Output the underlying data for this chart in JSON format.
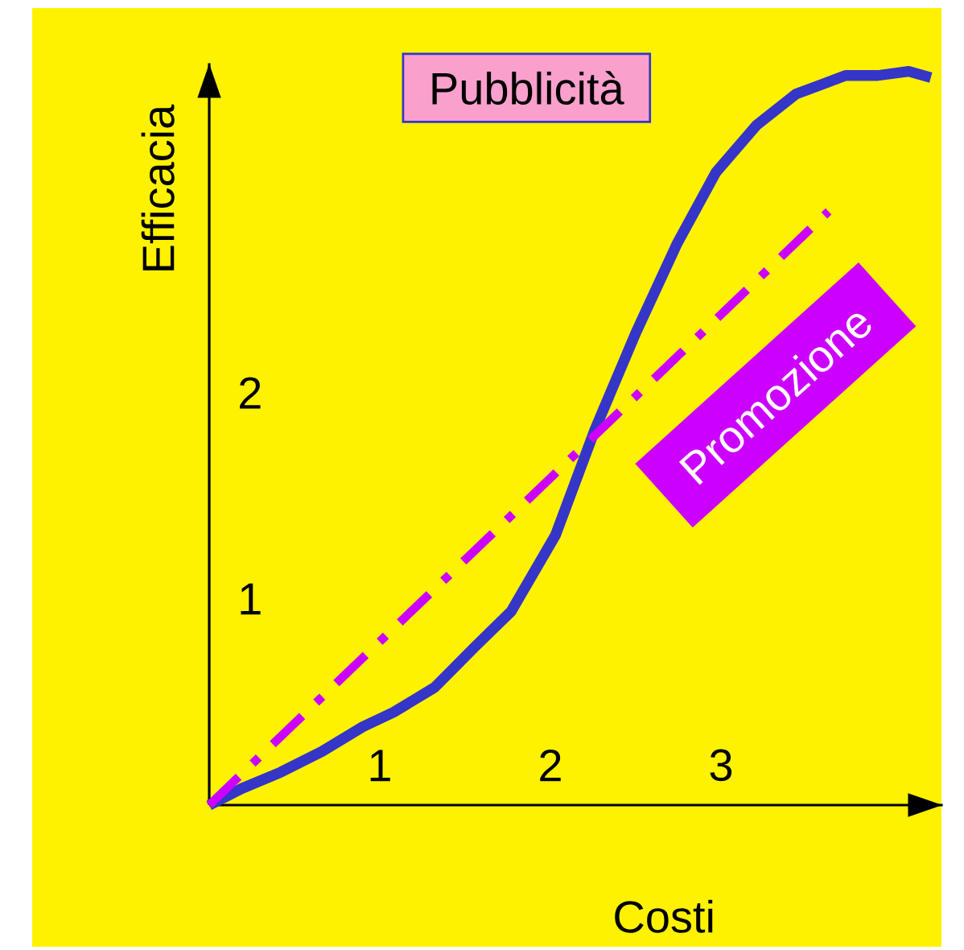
{
  "chart_data": {
    "type": "line",
    "xlabel": "Costi",
    "ylabel": "Efficacia",
    "xlim": [
      0,
      4.3
    ],
    "ylim": [
      0,
      3.6
    ],
    "xticks": [
      1,
      2,
      3
    ],
    "yticks": [
      1,
      2
    ],
    "series": [
      {
        "name": "Pubblicità",
        "color": "#3535c8",
        "line_style": "solid",
        "x": [
          0,
          0.19,
          0.42,
          0.66,
          0.9,
          1.08,
          1.32,
          1.56,
          1.77,
          2.03,
          2.26,
          2.5,
          2.74,
          2.97,
          3.21,
          3.44,
          3.73,
          3.92,
          4.1,
          4.23
        ],
        "values": [
          0,
          0.08,
          0.16,
          0.26,
          0.38,
          0.45,
          0.57,
          0.77,
          0.94,
          1.31,
          1.82,
          2.29,
          2.72,
          3.07,
          3.3,
          3.45,
          3.54,
          3.54,
          3.56,
          3.53
        ]
      },
      {
        "name": "Promozione",
        "color": "#cc00ff",
        "line_style": "dashdot",
        "x": [
          0,
          3.63
        ],
        "values": [
          0,
          2.88
        ]
      }
    ]
  }
}
